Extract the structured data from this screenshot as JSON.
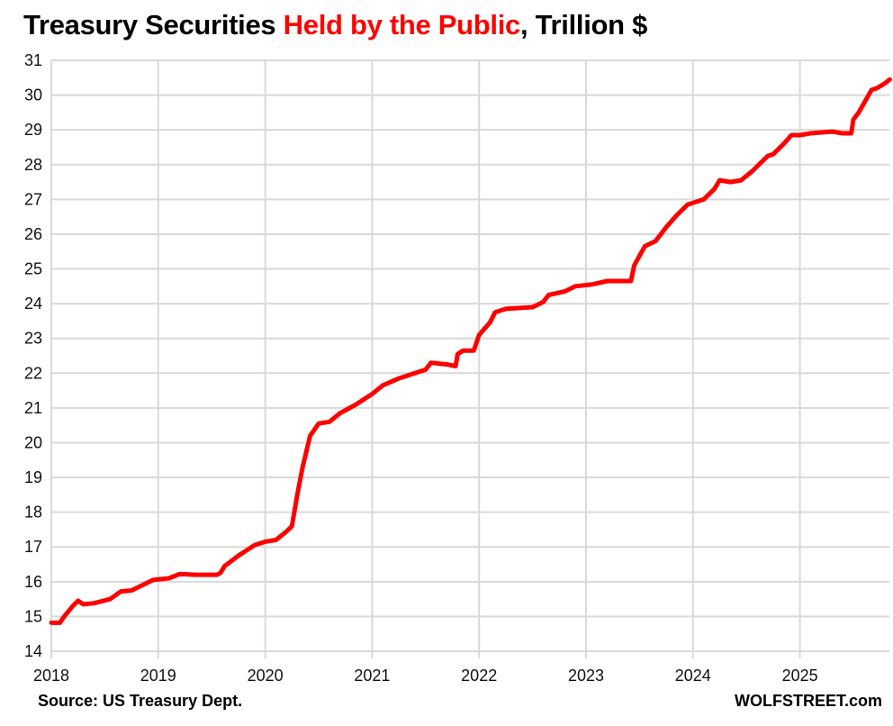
{
  "chart_data": {
    "type": "line",
    "title_parts": [
      "Treasury Securities ",
      "Held by the Public",
      ", Trillion $"
    ],
    "title": "Treasury Securities Held by the Public, Trillion $",
    "xlabel": "",
    "ylabel": "",
    "xlim": [
      2018,
      2025.84
    ],
    "ylim": [
      14,
      31
    ],
    "x_ticks": [
      "2018",
      "2019",
      "2020",
      "2021",
      "2022",
      "2023",
      "2024",
      "2025"
    ],
    "y_ticks": [
      "14",
      "15",
      "16",
      "17",
      "18",
      "19",
      "20",
      "21",
      "22",
      "23",
      "24",
      "25",
      "26",
      "27",
      "28",
      "29",
      "30",
      "31"
    ],
    "grid": true,
    "legend": "none",
    "series": [
      {
        "name": "Treasury Securities Held by the Public",
        "color": "#ff0000",
        "x": [
          2018.0,
          2018.08,
          2018.12,
          2018.2,
          2018.25,
          2018.3,
          2018.4,
          2018.55,
          2018.65,
          2018.75,
          2018.85,
          2018.95,
          2019.1,
          2019.2,
          2019.35,
          2019.55,
          2019.58,
          2019.62,
          2019.75,
          2019.9,
          2020.0,
          2020.1,
          2020.2,
          2020.25,
          2020.3,
          2020.35,
          2020.42,
          2020.5,
          2020.6,
          2020.7,
          2020.85,
          2021.0,
          2021.1,
          2021.25,
          2021.4,
          2021.5,
          2021.55,
          2021.7,
          2021.78,
          2021.8,
          2021.85,
          2021.95,
          2022.0,
          2022.1,
          2022.15,
          2022.25,
          2022.5,
          2022.6,
          2022.65,
          2022.8,
          2022.9,
          2023.05,
          2023.2,
          2023.35,
          2023.42,
          2023.45,
          2023.55,
          2023.65,
          2023.75,
          2023.85,
          2023.95,
          2024.1,
          2024.2,
          2024.25,
          2024.35,
          2024.45,
          2024.55,
          2024.7,
          2024.75,
          2024.85,
          2024.92,
          2025.0,
          2025.1,
          2025.3,
          2025.4,
          2025.48,
          2025.5,
          2025.55,
          2025.67,
          2025.72,
          2025.8,
          2025.84
        ],
        "y": [
          14.82,
          14.82,
          15.0,
          15.3,
          15.45,
          15.35,
          15.38,
          15.5,
          15.72,
          15.75,
          15.9,
          16.05,
          16.1,
          16.22,
          16.2,
          16.2,
          16.25,
          16.45,
          16.75,
          17.05,
          17.15,
          17.2,
          17.45,
          17.6,
          18.5,
          19.3,
          20.2,
          20.55,
          20.6,
          20.85,
          21.1,
          21.4,
          21.65,
          21.85,
          22.0,
          22.1,
          22.3,
          22.25,
          22.2,
          22.55,
          22.65,
          22.65,
          23.1,
          23.45,
          23.75,
          23.85,
          23.9,
          24.05,
          24.25,
          24.35,
          24.5,
          24.55,
          24.65,
          24.65,
          24.65,
          25.1,
          25.65,
          25.8,
          26.2,
          26.55,
          26.85,
          27.0,
          27.3,
          27.55,
          27.5,
          27.55,
          27.8,
          28.25,
          28.3,
          28.6,
          28.85,
          28.85,
          28.9,
          28.95,
          28.9,
          28.9,
          29.3,
          29.5,
          30.15,
          30.2,
          30.35,
          30.45
        ]
      }
    ]
  },
  "footer": {
    "source": "Source: US Treasury Dept.",
    "brand": "WOLFSTREET.com"
  }
}
